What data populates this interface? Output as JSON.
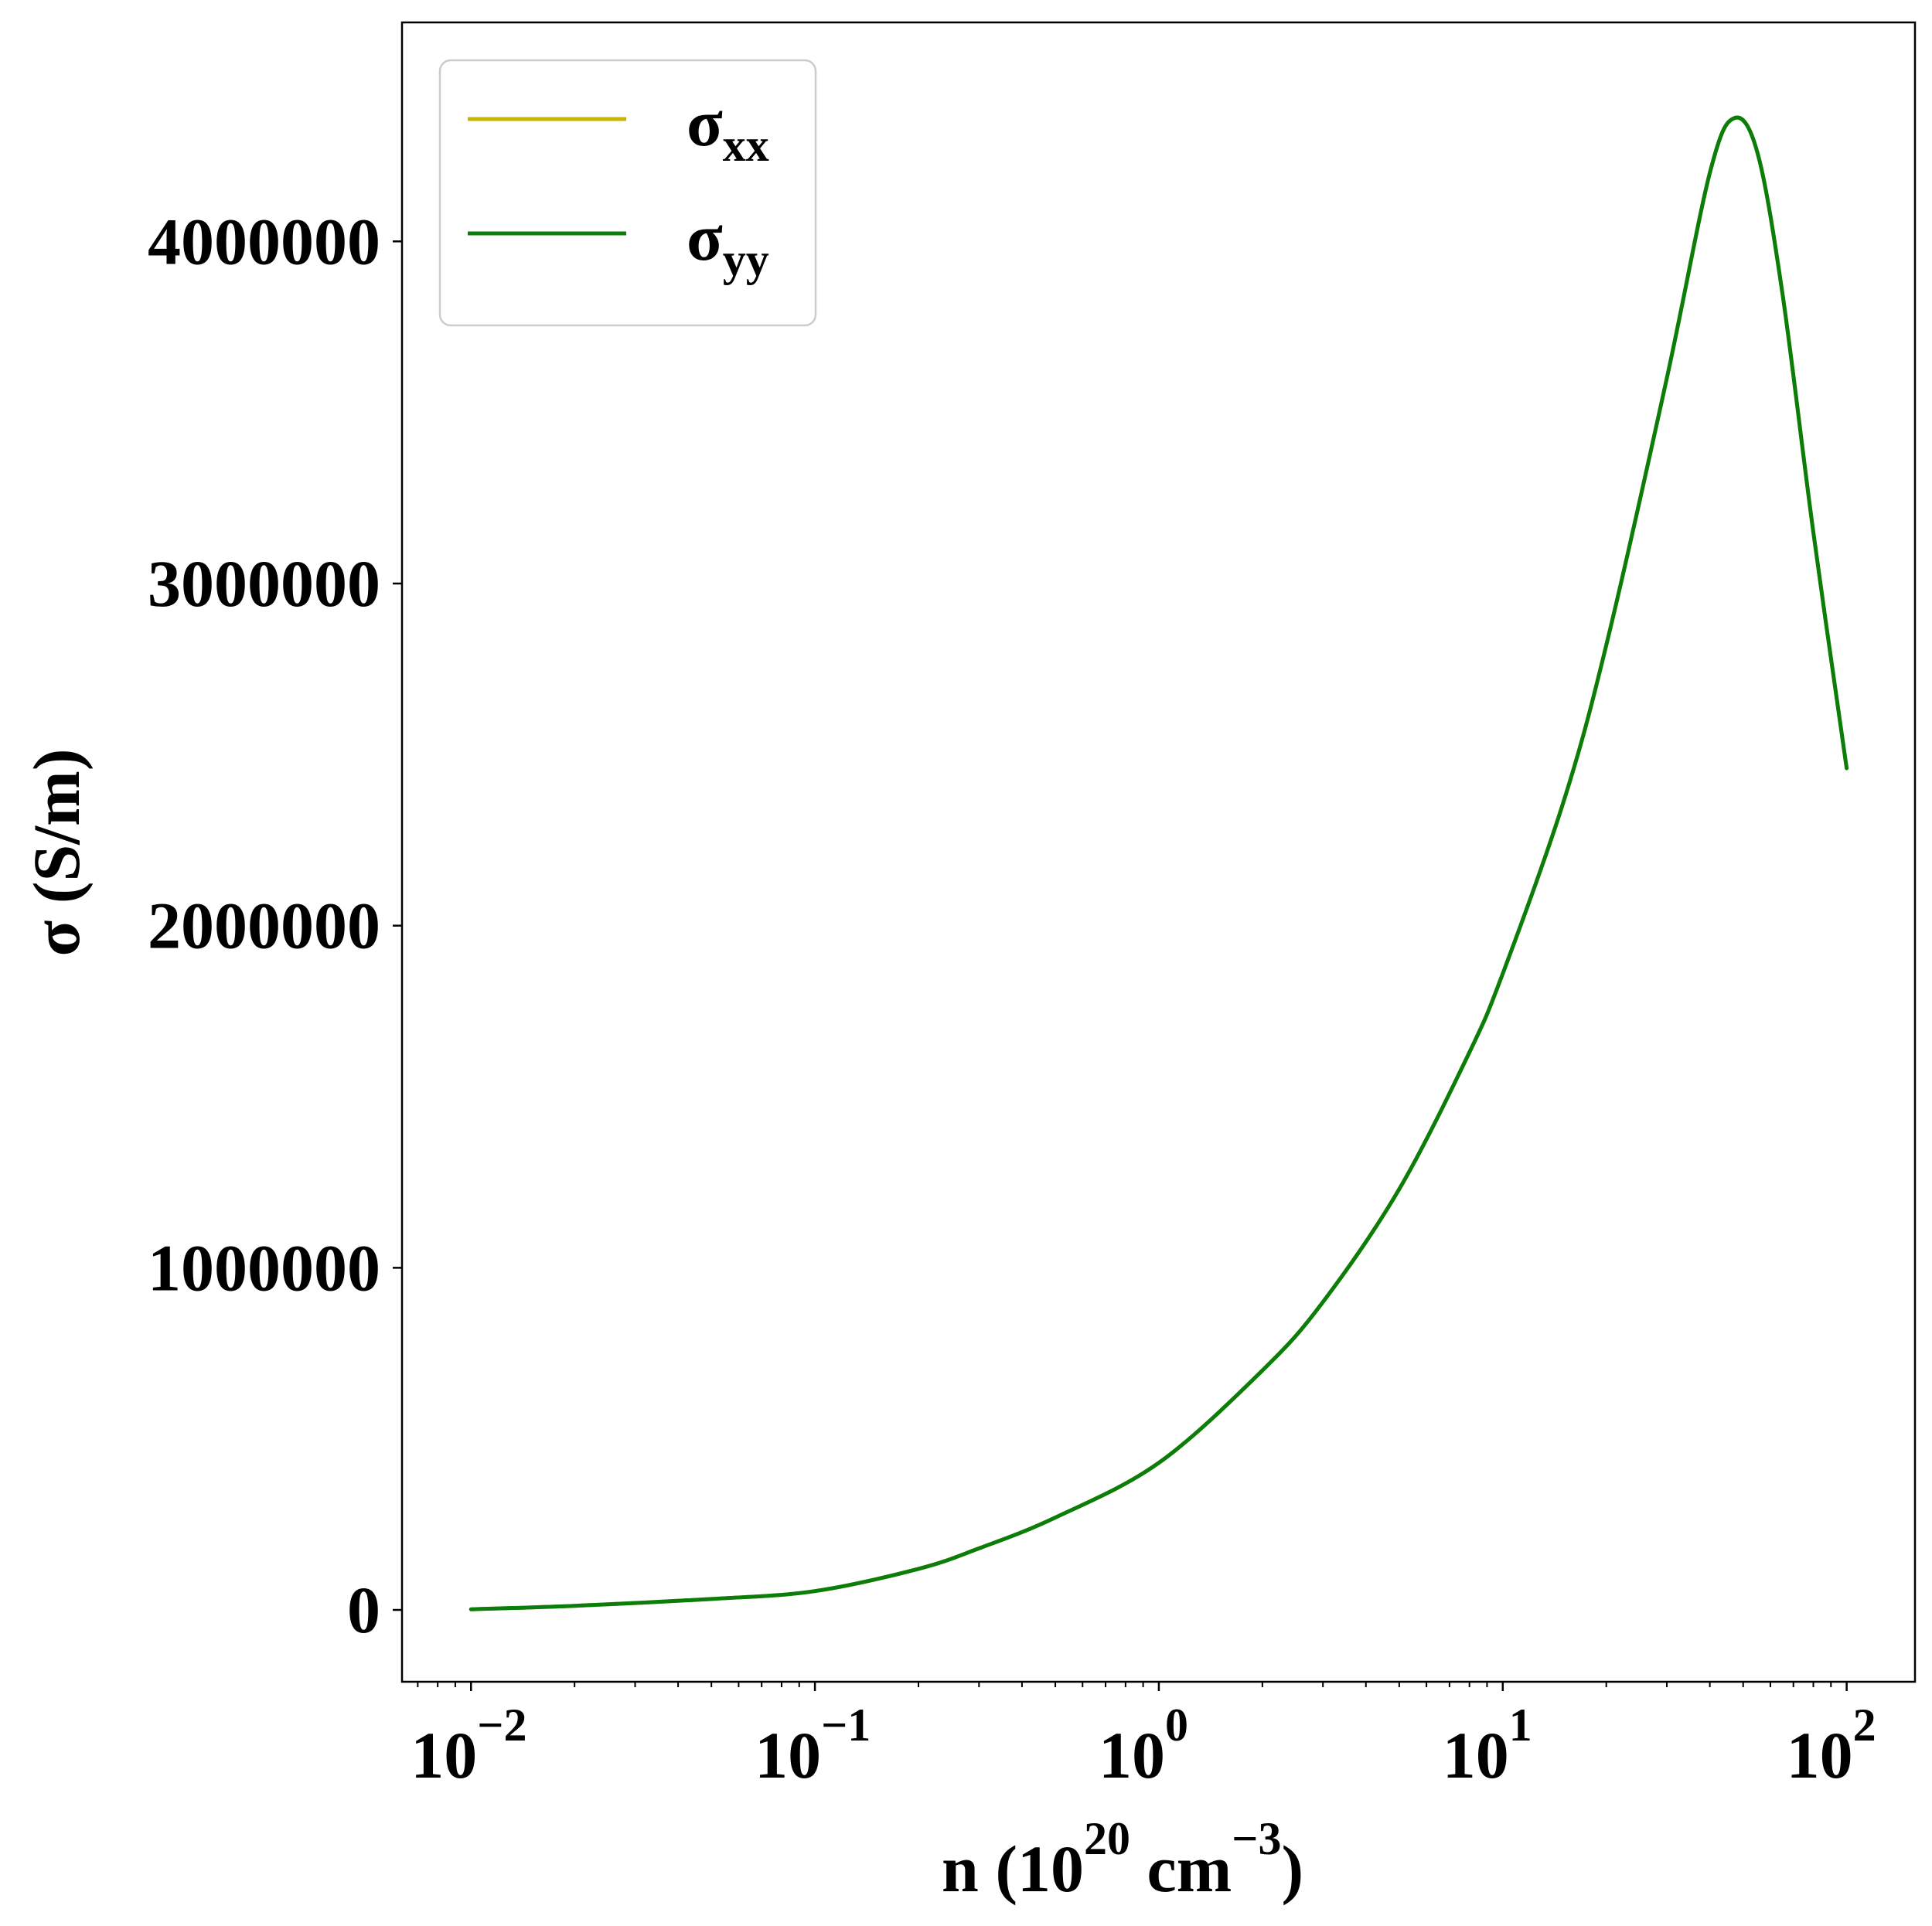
{
  "chart_data": {
    "type": "line",
    "xscale": "log",
    "xlim": [
      0.0063,
      158
    ],
    "ylim": [
      -210000,
      4640000
    ],
    "xticks": [
      {
        "value": 0.01,
        "base": "10",
        "exp": "−2"
      },
      {
        "value": 0.1,
        "base": "10",
        "exp": "−1"
      },
      {
        "value": 1,
        "base": "10",
        "exp": "0"
      },
      {
        "value": 10,
        "base": "10",
        "exp": "1"
      },
      {
        "value": 100,
        "base": "10",
        "exp": "2"
      }
    ],
    "yticks": [
      {
        "value": 0,
        "label": "0"
      },
      {
        "value": 1000000,
        "label": "1000000"
      },
      {
        "value": 2000000,
        "label": "2000000"
      },
      {
        "value": 3000000,
        "label": "3000000"
      },
      {
        "value": 4000000,
        "label": "4000000"
      }
    ],
    "xlabel": {
      "main": "n (10",
      "sup1": "20",
      "mid": " cm",
      "sup2": "−3",
      "end": ")"
    },
    "ylabel": "σ (S/m)",
    "legend_position": "upper-left",
    "series": [
      {
        "name": "σxx",
        "name_base": "σ",
        "name_sub": "xx",
        "color": "#c8b400",
        "x": [
          0.01,
          0.02,
          0.05,
          0.1,
          0.2,
          0.3,
          0.5,
          1,
          2,
          3,
          5,
          8,
          10,
          15,
          20,
          30,
          40,
          47,
          55,
          65,
          80,
          100
        ],
        "y": [
          2000,
          12000,
          32000,
          55000,
          120000,
          180000,
          270000,
          430000,
          700000,
          900000,
          1230000,
          1630000,
          1860000,
          2360000,
          2820000,
          3600000,
          4200000,
          4360000,
          4260000,
          3850000,
          3150000,
          2460000
        ]
      },
      {
        "name": "σyy",
        "name_base": "σ",
        "name_sub": "yy",
        "color": "#0a7d0a",
        "x": [
          0.01,
          0.02,
          0.05,
          0.1,
          0.2,
          0.3,
          0.5,
          1,
          2,
          3,
          5,
          8,
          10,
          15,
          20,
          30,
          40,
          47,
          55,
          65,
          80,
          100
        ],
        "y": [
          2000,
          12000,
          32000,
          55000,
          120000,
          180000,
          270000,
          430000,
          700000,
          900000,
          1230000,
          1630000,
          1860000,
          2360000,
          2820000,
          3600000,
          4200000,
          4360000,
          4260000,
          3850000,
          3150000,
          2460000
        ]
      }
    ]
  }
}
